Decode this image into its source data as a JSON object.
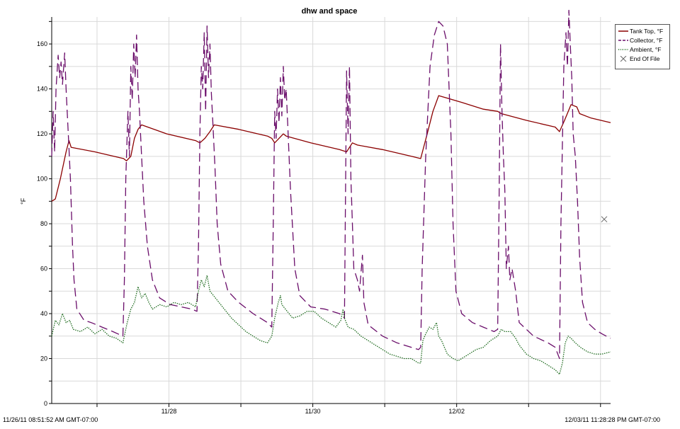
{
  "chart_data": {
    "type": "line",
    "title": "dhw and space",
    "ylabel": "°F",
    "ylim": [
      0,
      172
    ],
    "yticks": [
      0,
      20,
      40,
      60,
      80,
      100,
      120,
      140,
      160
    ],
    "x_unit": "days since 11/26/11 08:51:52",
    "xlim": [
      0,
      7.77
    ],
    "xtick_labels": [
      {
        "x": 1.63,
        "label": "11/28"
      },
      {
        "x": 3.63,
        "label": "11/30"
      },
      {
        "x": 5.63,
        "label": "12/02"
      }
    ],
    "start_label": "11/26/11 08:51:52 AM GMT-07:00",
    "end_label": "12/03/11 11:28:28 PM GMT-07:00",
    "grid": true,
    "legend_position": "top-right",
    "series": [
      {
        "name": "Tank Top, °F",
        "color": "#8b0000",
        "style": "solid",
        "points": [
          [
            0,
            90
          ],
          [
            0.05,
            91
          ],
          [
            0.12,
            100
          ],
          [
            0.2,
            112
          ],
          [
            0.24,
            117
          ],
          [
            0.27,
            114
          ],
          [
            0.6,
            112
          ],
          [
            1.0,
            109
          ],
          [
            1.04,
            108
          ],
          [
            1.1,
            110
          ],
          [
            1.15,
            118
          ],
          [
            1.2,
            122
          ],
          [
            1.25,
            124
          ],
          [
            1.6,
            120
          ],
          [
            2.0,
            117
          ],
          [
            2.06,
            116
          ],
          [
            2.13,
            118
          ],
          [
            2.2,
            121
          ],
          [
            2.26,
            124
          ],
          [
            2.6,
            122
          ],
          [
            3.0,
            119
          ],
          [
            3.06,
            118
          ],
          [
            3.1,
            116
          ],
          [
            3.16,
            118
          ],
          [
            3.22,
            120
          ],
          [
            3.26,
            119
          ],
          [
            3.6,
            116
          ],
          [
            4.0,
            113
          ],
          [
            4.1,
            112
          ],
          [
            4.18,
            116
          ],
          [
            4.25,
            115
          ],
          [
            4.6,
            113
          ],
          [
            5.0,
            110
          ],
          [
            5.13,
            109
          ],
          [
            5.22,
            120
          ],
          [
            5.3,
            130
          ],
          [
            5.38,
            137
          ],
          [
            5.7,
            134
          ],
          [
            6.0,
            131
          ],
          [
            6.2,
            130
          ],
          [
            6.25,
            129
          ],
          [
            6.6,
            126
          ],
          [
            7.0,
            123
          ],
          [
            7.06,
            121
          ],
          [
            7.13,
            126
          ],
          [
            7.22,
            133
          ],
          [
            7.3,
            132
          ],
          [
            7.34,
            129
          ],
          [
            7.5,
            127
          ],
          [
            7.77,
            125
          ]
        ]
      },
      {
        "name": "Collector, °F",
        "color": "#6a0d6a",
        "style": "dashed",
        "points": [
          [
            0,
            110
          ],
          [
            0.02,
            130
          ],
          [
            0.04,
            112
          ],
          [
            0.06,
            140
          ],
          [
            0.09,
            155
          ],
          [
            0.11,
            145
          ],
          [
            0.13,
            152
          ],
          [
            0.15,
            142
          ],
          [
            0.18,
            156
          ],
          [
            0.2,
            140
          ],
          [
            0.23,
            120
          ],
          [
            0.26,
            100
          ],
          [
            0.29,
            70
          ],
          [
            0.31,
            55
          ],
          [
            0.35,
            42
          ],
          [
            0.45,
            37
          ],
          [
            0.55,
            36
          ],
          [
            0.7,
            34
          ],
          [
            0.85,
            32
          ],
          [
            0.99,
            30
          ],
          [
            1.01,
            55
          ],
          [
            1.03,
            100
          ],
          [
            1.06,
            130
          ],
          [
            1.08,
            110
          ],
          [
            1.1,
            150
          ],
          [
            1.12,
            135
          ],
          [
            1.14,
            160
          ],
          [
            1.16,
            145
          ],
          [
            1.18,
            164
          ],
          [
            1.2,
            140
          ],
          [
            1.22,
            130
          ],
          [
            1.25,
            110
          ],
          [
            1.28,
            90
          ],
          [
            1.33,
            70
          ],
          [
            1.4,
            55
          ],
          [
            1.5,
            47
          ],
          [
            1.65,
            44
          ],
          [
            1.8,
            43
          ],
          [
            1.95,
            42
          ],
          [
            2.02,
            41
          ],
          [
            2.04,
            70
          ],
          [
            2.06,
            120
          ],
          [
            2.08,
            150
          ],
          [
            2.1,
            140
          ],
          [
            2.12,
            165
          ],
          [
            2.14,
            130
          ],
          [
            2.16,
            168
          ],
          [
            2.18,
            145
          ],
          [
            2.2,
            160
          ],
          [
            2.22,
            138
          ],
          [
            2.24,
            125
          ],
          [
            2.27,
            105
          ],
          [
            2.3,
            80
          ],
          [
            2.35,
            62
          ],
          [
            2.45,
            50
          ],
          [
            2.6,
            45
          ],
          [
            2.8,
            40
          ],
          [
            3.0,
            36
          ],
          [
            3.06,
            34
          ],
          [
            3.08,
            80
          ],
          [
            3.1,
            130
          ],
          [
            3.12,
            118
          ],
          [
            3.14,
            140
          ],
          [
            3.16,
            125
          ],
          [
            3.18,
            145
          ],
          [
            3.2,
            128
          ],
          [
            3.22,
            150
          ],
          [
            3.24,
            135
          ],
          [
            3.26,
            140
          ],
          [
            3.28,
            125
          ],
          [
            3.32,
            95
          ],
          [
            3.38,
            60
          ],
          [
            3.45,
            48
          ],
          [
            3.6,
            43
          ],
          [
            3.8,
            42
          ],
          [
            4.0,
            40
          ],
          [
            4.07,
            38
          ],
          [
            4.08,
            75
          ],
          [
            4.1,
            148
          ],
          [
            4.12,
            120
          ],
          [
            4.14,
            150
          ],
          [
            4.16,
            100
          ],
          [
            4.18,
            80
          ],
          [
            4.2,
            60
          ],
          [
            4.25,
            55
          ],
          [
            4.28,
            50
          ],
          [
            4.3,
            58
          ],
          [
            4.32,
            66
          ],
          [
            4.34,
            45
          ],
          [
            4.4,
            35
          ],
          [
            4.6,
            30
          ],
          [
            4.8,
            27
          ],
          [
            5.0,
            25
          ],
          [
            5.1,
            24
          ],
          [
            5.13,
            25
          ],
          [
            5.15,
            60
          ],
          [
            5.2,
            110
          ],
          [
            5.26,
            150
          ],
          [
            5.32,
            164
          ],
          [
            5.38,
            170
          ],
          [
            5.44,
            168
          ],
          [
            5.5,
            160
          ],
          [
            5.55,
            120
          ],
          [
            5.58,
            80
          ],
          [
            5.62,
            50
          ],
          [
            5.7,
            40
          ],
          [
            5.85,
            36
          ],
          [
            6.0,
            34
          ],
          [
            6.15,
            32
          ],
          [
            6.2,
            33
          ],
          [
            6.22,
            90
          ],
          [
            6.24,
            160
          ],
          [
            6.26,
            130
          ],
          [
            6.28,
            110
          ],
          [
            6.3,
            95
          ],
          [
            6.32,
            60
          ],
          [
            6.35,
            70
          ],
          [
            6.37,
            55
          ],
          [
            6.4,
            60
          ],
          [
            6.45,
            50
          ],
          [
            6.5,
            36
          ],
          [
            6.7,
            30
          ],
          [
            6.9,
            27
          ],
          [
            7.0,
            25
          ],
          [
            7.06,
            20
          ],
          [
            7.08,
            80
          ],
          [
            7.12,
            150
          ],
          [
            7.15,
            165
          ],
          [
            7.17,
            150
          ],
          [
            7.19,
            175
          ],
          [
            7.21,
            160
          ],
          [
            7.23,
            145
          ],
          [
            7.25,
            120
          ],
          [
            7.28,
            110
          ],
          [
            7.31,
            90
          ],
          [
            7.34,
            65
          ],
          [
            7.38,
            45
          ],
          [
            7.45,
            36
          ],
          [
            7.55,
            33
          ],
          [
            7.65,
            31
          ],
          [
            7.77,
            29
          ]
        ]
      },
      {
        "name": "Ambient, °F",
        "color": "#1f6b1f",
        "style": "dotted",
        "points": [
          [
            0,
            30
          ],
          [
            0.05,
            37
          ],
          [
            0.1,
            35
          ],
          [
            0.15,
            40
          ],
          [
            0.2,
            36
          ],
          [
            0.25,
            37
          ],
          [
            0.3,
            33
          ],
          [
            0.4,
            32
          ],
          [
            0.5,
            34
          ],
          [
            0.6,
            31
          ],
          [
            0.7,
            33
          ],
          [
            0.8,
            30
          ],
          [
            0.9,
            29
          ],
          [
            0.99,
            27
          ],
          [
            1.05,
            36
          ],
          [
            1.1,
            42
          ],
          [
            1.15,
            45
          ],
          [
            1.2,
            52
          ],
          [
            1.25,
            47
          ],
          [
            1.3,
            49
          ],
          [
            1.35,
            45
          ],
          [
            1.4,
            42
          ],
          [
            1.5,
            44
          ],
          [
            1.6,
            43
          ],
          [
            1.7,
            45
          ],
          [
            1.8,
            44
          ],
          [
            1.9,
            45
          ],
          [
            2.0,
            43
          ],
          [
            2.04,
            50
          ],
          [
            2.08,
            55
          ],
          [
            2.12,
            52
          ],
          [
            2.16,
            57
          ],
          [
            2.2,
            50
          ],
          [
            2.25,
            48
          ],
          [
            2.3,
            46
          ],
          [
            2.4,
            42
          ],
          [
            2.5,
            38
          ],
          [
            2.6,
            35
          ],
          [
            2.7,
            32
          ],
          [
            2.8,
            30
          ],
          [
            2.9,
            28
          ],
          [
            3.0,
            27
          ],
          [
            3.06,
            30
          ],
          [
            3.1,
            38
          ],
          [
            3.15,
            45
          ],
          [
            3.18,
            48
          ],
          [
            3.2,
            44
          ],
          [
            3.25,
            42
          ],
          [
            3.35,
            38
          ],
          [
            3.45,
            39
          ],
          [
            3.55,
            41
          ],
          [
            3.65,
            41
          ],
          [
            3.75,
            38
          ],
          [
            3.85,
            36
          ],
          [
            3.95,
            34
          ],
          [
            4.02,
            37
          ],
          [
            4.05,
            42
          ],
          [
            4.07,
            38
          ],
          [
            4.12,
            34
          ],
          [
            4.2,
            33
          ],
          [
            4.3,
            30
          ],
          [
            4.4,
            28
          ],
          [
            4.5,
            26
          ],
          [
            4.6,
            24
          ],
          [
            4.7,
            22
          ],
          [
            4.8,
            21
          ],
          [
            4.9,
            20
          ],
          [
            5.0,
            20
          ],
          [
            5.1,
            18
          ],
          [
            5.13,
            18
          ],
          [
            5.16,
            28
          ],
          [
            5.2,
            31
          ],
          [
            5.25,
            34
          ],
          [
            5.3,
            33
          ],
          [
            5.35,
            36
          ],
          [
            5.38,
            30
          ],
          [
            5.42,
            28
          ],
          [
            5.5,
            22
          ],
          [
            5.58,
            20
          ],
          [
            5.65,
            19
          ],
          [
            5.7,
            20
          ],
          [
            5.8,
            22
          ],
          [
            5.9,
            24
          ],
          [
            6.0,
            25
          ],
          [
            6.1,
            28
          ],
          [
            6.2,
            30
          ],
          [
            6.25,
            33
          ],
          [
            6.3,
            32
          ],
          [
            6.38,
            32
          ],
          [
            6.45,
            29
          ],
          [
            6.5,
            26
          ],
          [
            6.6,
            22
          ],
          [
            6.7,
            20
          ],
          [
            6.8,
            19
          ],
          [
            6.9,
            17
          ],
          [
            7.0,
            15
          ],
          [
            7.06,
            13
          ],
          [
            7.1,
            18
          ],
          [
            7.14,
            27
          ],
          [
            7.18,
            30
          ],
          [
            7.22,
            29
          ],
          [
            7.28,
            27
          ],
          [
            7.35,
            25
          ],
          [
            7.45,
            23
          ],
          [
            7.55,
            22
          ],
          [
            7.65,
            22
          ],
          [
            7.77,
            23
          ]
        ]
      }
    ],
    "legend": [
      {
        "label": "Tank Top, °F",
        "color": "#8b0000",
        "style": "solid"
      },
      {
        "label": "Collector, °F",
        "color": "#6a0d6a",
        "style": "dashed"
      },
      {
        "label": "Ambient, °F",
        "color": "#1f6b1f",
        "style": "dotted"
      },
      {
        "label": "End Of File",
        "color": "#666666",
        "style": "x-marker"
      }
    ],
    "annotations": [
      {
        "type": "x-marker",
        "x": 7.77,
        "y": 82
      }
    ]
  }
}
